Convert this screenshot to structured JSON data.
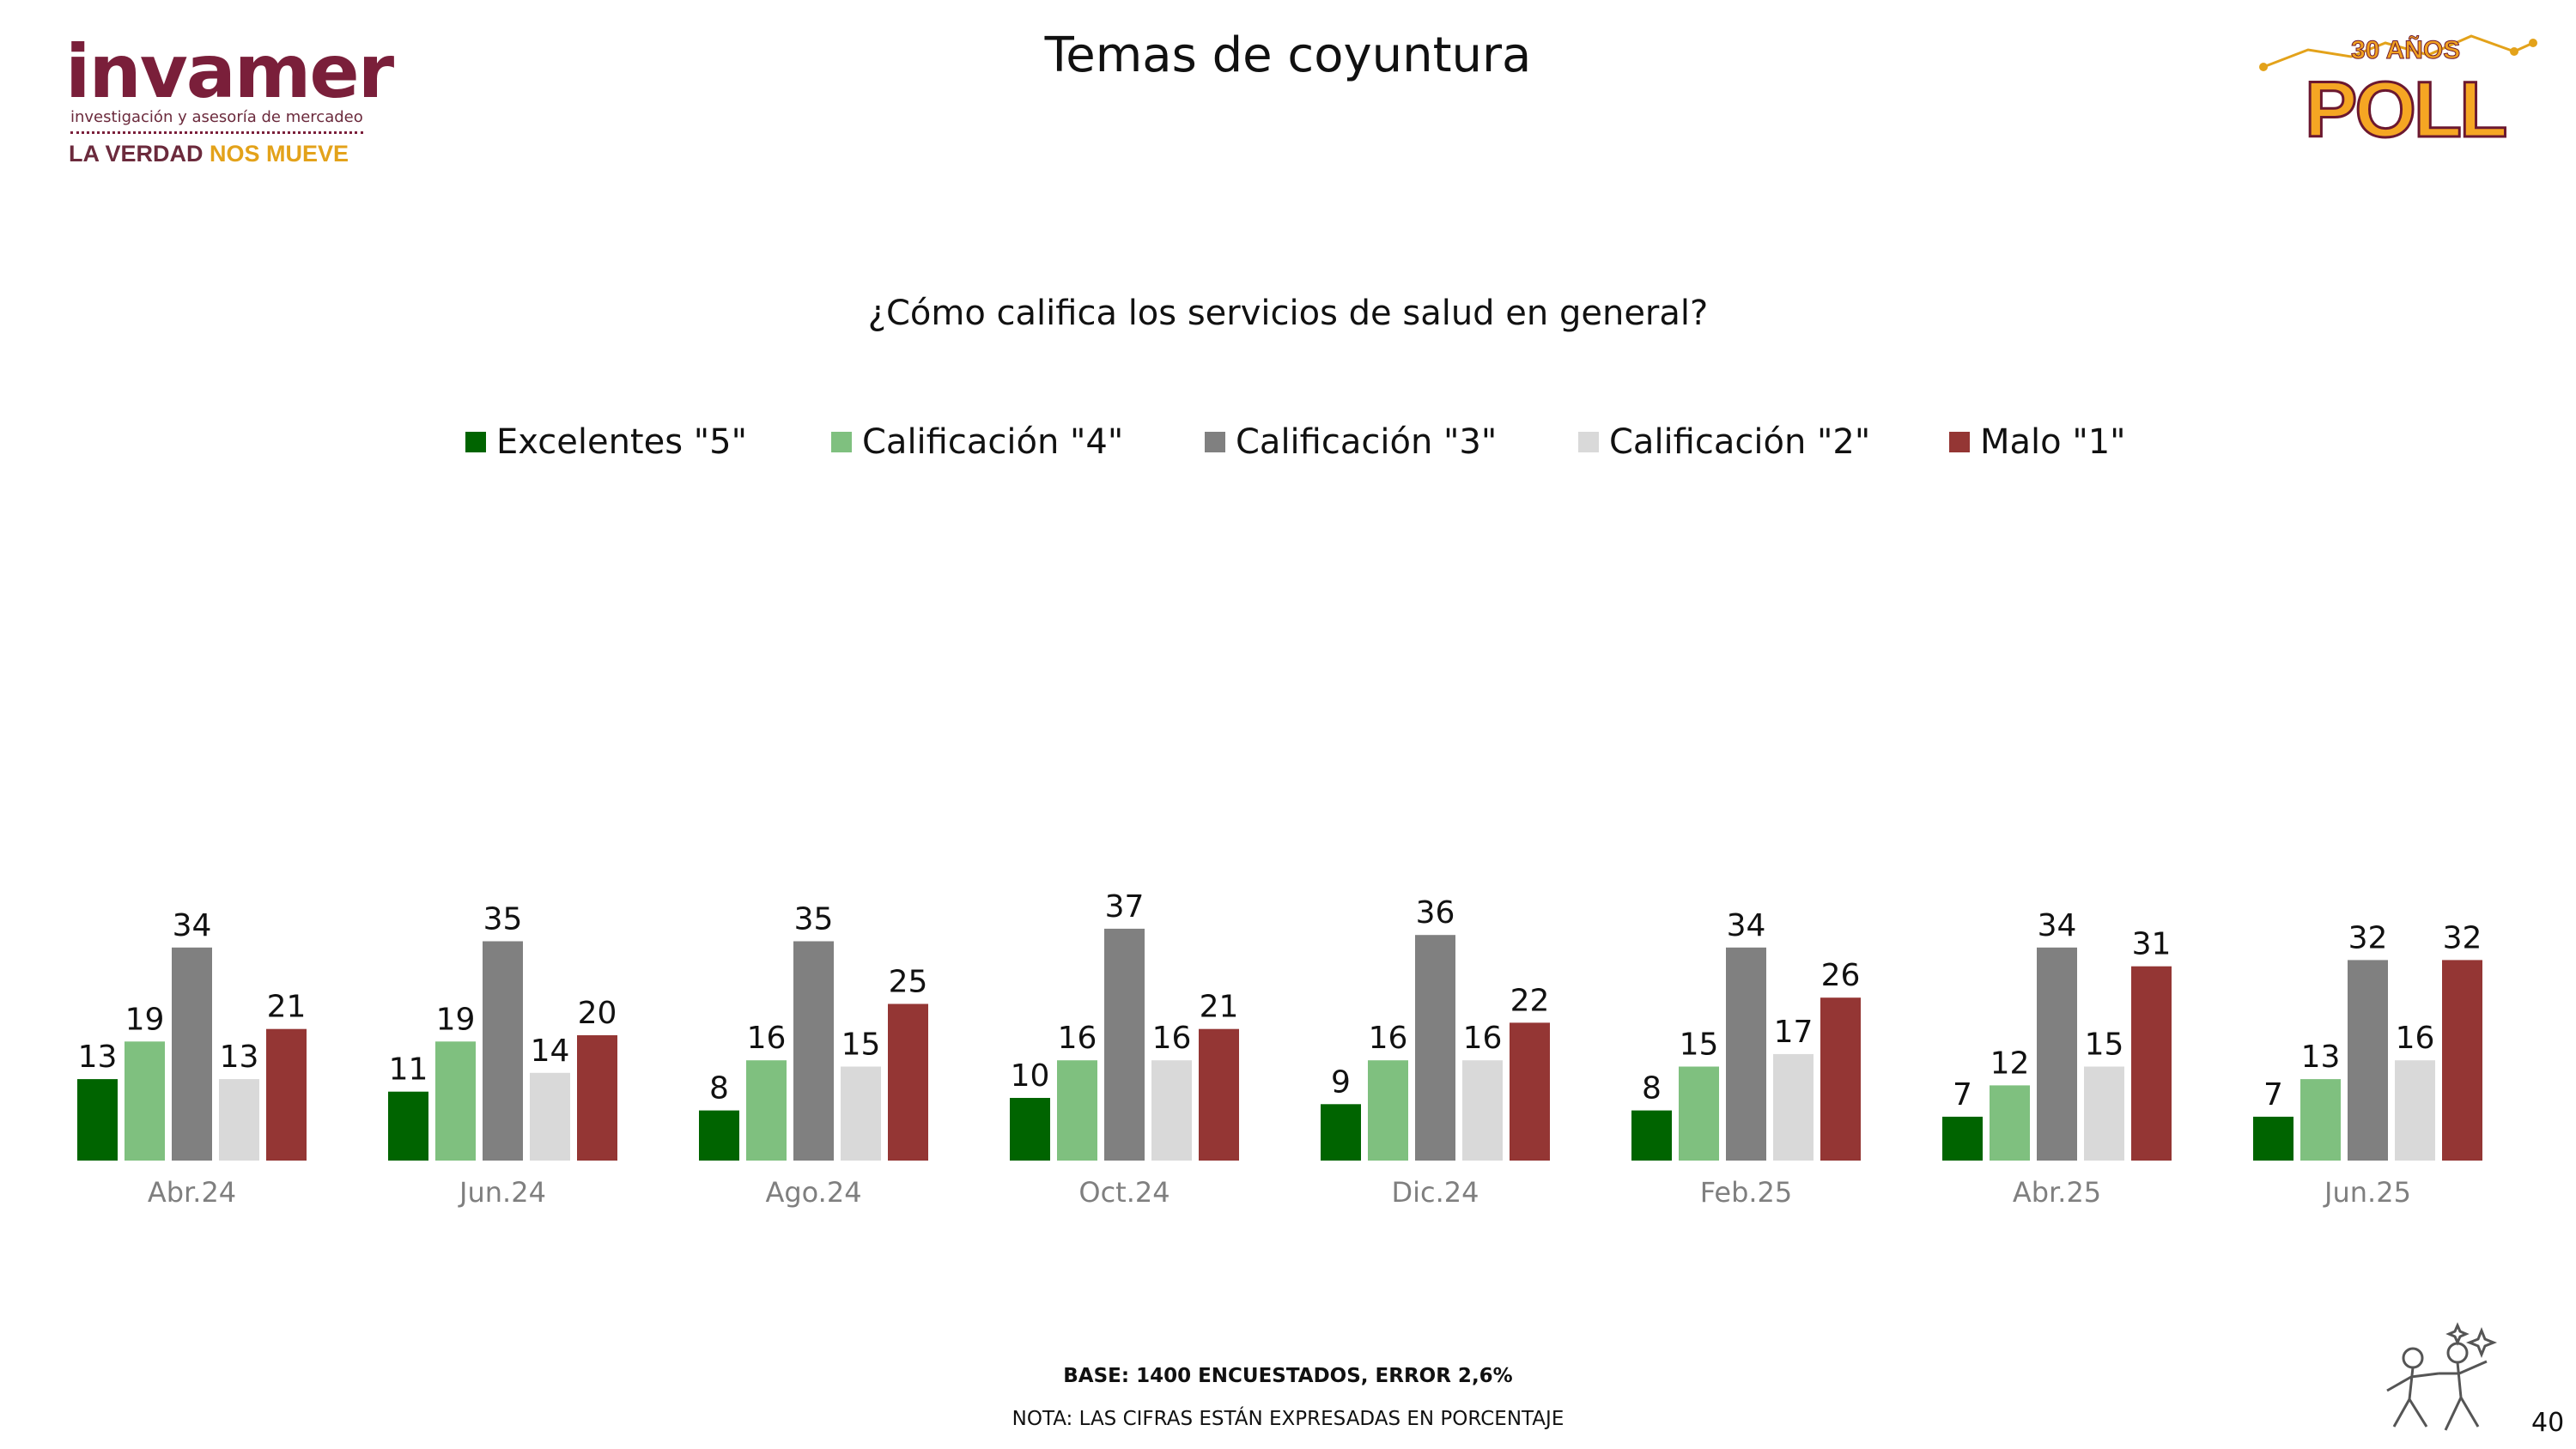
{
  "header": {
    "title": "Temas de coyuntura"
  },
  "logos": {
    "invamer_word": "invamer",
    "invamer_tagline": "investigación y asesoría de mercadeo",
    "slogan_part1": "LA VERDAD ",
    "slogan_part2": "NOS MUEVE",
    "poll_top": "30 AÑOS",
    "poll_main": "POLL"
  },
  "question": "¿Cómo califica los servicios de salud en general?",
  "colors": {
    "excelentes": "#006400",
    "cal4": "#7fc07f",
    "cal3": "#808080",
    "cal2": "#d9d9d9",
    "malo": "#943634"
  },
  "chart_data": {
    "type": "bar",
    "categories": [
      "Abr.24",
      "Jun.24",
      "Ago.24",
      "Oct.24",
      "Dic.24",
      "Feb.25",
      "Abr.25",
      "Jun.25"
    ],
    "series": [
      {
        "name": "Excelentes \"5\"",
        "color": "#006400",
        "values": [
          13,
          11,
          8,
          10,
          9,
          8,
          7,
          7
        ]
      },
      {
        "name": "Calificación \"4\"",
        "color": "#7fc07f",
        "values": [
          19,
          19,
          16,
          16,
          16,
          15,
          12,
          13
        ]
      },
      {
        "name": "Calificación \"3\"",
        "color": "#808080",
        "values": [
          34,
          35,
          35,
          37,
          36,
          34,
          34,
          32
        ]
      },
      {
        "name": "Calificación \"2\"",
        "color": "#d9d9d9",
        "values": [
          13,
          14,
          15,
          16,
          16,
          17,
          15,
          16
        ]
      },
      {
        "name": "Malo \"1\"",
        "color": "#943634",
        "values": [
          21,
          20,
          25,
          21,
          22,
          26,
          31,
          32
        ]
      }
    ],
    "ylim": [
      0,
      40
    ],
    "legend": "top",
    "grid": false
  },
  "footer": {
    "base": "BASE: 1400 ENCUESTADOS, ERROR 2,6%",
    "note": "NOTA: LAS CIFRAS ESTÁN EXPRESADAS EN PORCENTAJE"
  },
  "page_number": "40"
}
